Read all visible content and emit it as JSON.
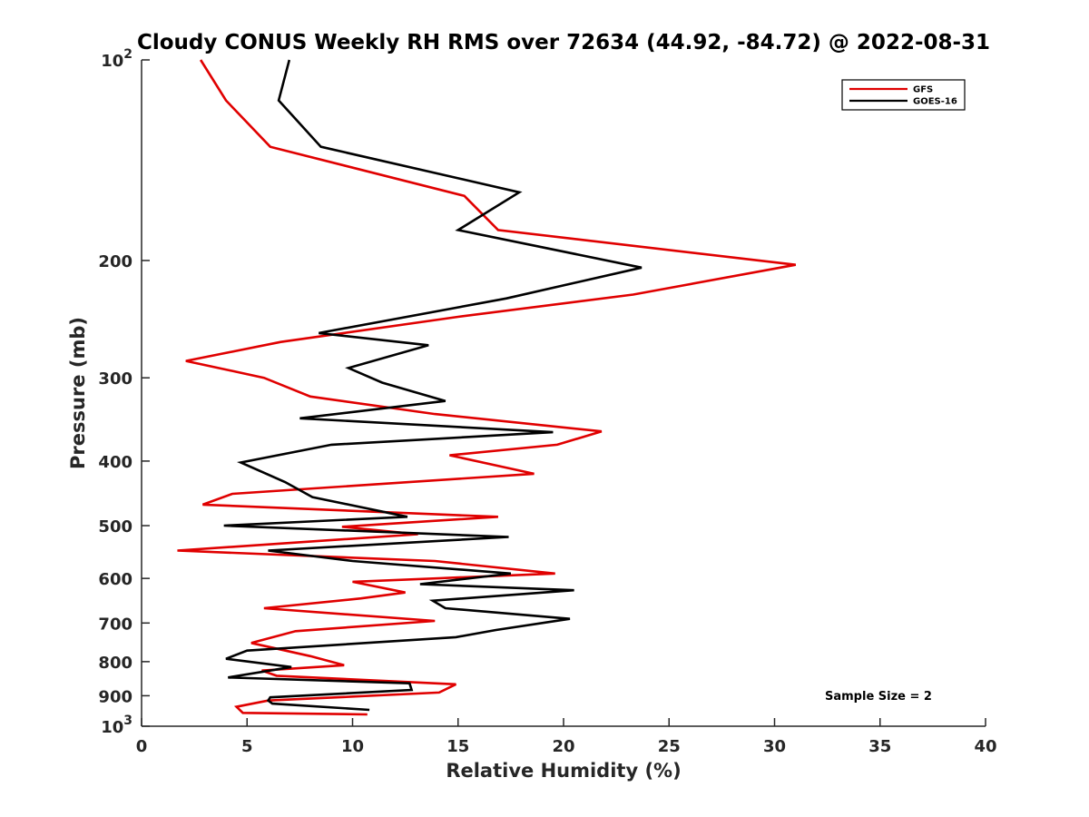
{
  "chart_data": {
    "type": "line",
    "title": "Cloudy CONUS Weekly RH RMS over 72634 (44.92, -84.72) @ 2022-08-31",
    "xlabel": "Relative Humidity (%)",
    "ylabel": "Pressure (mb)",
    "xlim": [
      0,
      40
    ],
    "ylim": [
      100,
      1000
    ],
    "yscale": "log",
    "y_reversed": true,
    "x_ticks": [
      "0",
      "5",
      "10",
      "15",
      "20",
      "25",
      "30",
      "35",
      "40"
    ],
    "y_ticks": [
      {
        "value": 100,
        "base": "10",
        "exp": "2"
      },
      {
        "value": 200,
        "label": "200"
      },
      {
        "value": 300,
        "label": "300"
      },
      {
        "value": 400,
        "label": "400"
      },
      {
        "value": 500,
        "label": "500"
      },
      {
        "value": 600,
        "label": "600"
      },
      {
        "value": 700,
        "label": "700"
      },
      {
        "value": 800,
        "label": "800"
      },
      {
        "value": 900,
        "label": "900"
      },
      {
        "value": 1000,
        "base": "10",
        "exp": "3"
      }
    ],
    "legend_position": "top-right",
    "grid": false,
    "annotation": "Sample Size = 2",
    "series": [
      {
        "name": "GFS",
        "color": "#e00000",
        "points": [
          [
            2.8,
            100
          ],
          [
            4.0,
            115
          ],
          [
            6.1,
            135
          ],
          [
            15.3,
            160
          ],
          [
            16.9,
            180
          ],
          [
            31.0,
            203
          ],
          [
            23.3,
            225
          ],
          [
            15.0,
            243
          ],
          [
            6.6,
            265
          ],
          [
            2.1,
            283
          ],
          [
            5.8,
            300
          ],
          [
            8.0,
            320
          ],
          [
            13.9,
            340
          ],
          [
            21.8,
            361
          ],
          [
            19.7,
            378
          ],
          [
            14.6,
            392
          ],
          [
            18.6,
            418
          ],
          [
            4.3,
            448
          ],
          [
            2.9,
            465
          ],
          [
            16.9,
            485
          ],
          [
            9.5,
            502
          ],
          [
            13.1,
            515
          ],
          [
            1.7,
            545
          ],
          [
            13.9,
            565
          ],
          [
            19.6,
            590
          ],
          [
            10.0,
            607
          ],
          [
            12.5,
            630
          ],
          [
            10.4,
            643
          ],
          [
            5.8,
            665
          ],
          [
            13.9,
            695
          ],
          [
            7.3,
            720
          ],
          [
            5.2,
            750
          ],
          [
            8.0,
            785
          ],
          [
            9.6,
            810
          ],
          [
            5.7,
            825
          ],
          [
            6.4,
            840
          ],
          [
            14.9,
            865
          ],
          [
            14.1,
            890
          ],
          [
            6.0,
            915
          ],
          [
            4.5,
            935
          ],
          [
            4.8,
            955
          ],
          [
            10.7,
            960
          ]
        ]
      },
      {
        "name": "GOES-16",
        "color": "#000000",
        "points": [
          [
            7.0,
            100
          ],
          [
            6.5,
            115
          ],
          [
            8.5,
            135
          ],
          [
            17.9,
            158
          ],
          [
            15.0,
            180
          ],
          [
            23.7,
            205
          ],
          [
            17.3,
            228
          ],
          [
            8.4,
            257
          ],
          [
            13.6,
            268
          ],
          [
            9.8,
            290
          ],
          [
            11.4,
            305
          ],
          [
            14.4,
            325
          ],
          [
            7.5,
            345
          ],
          [
            19.5,
            362
          ],
          [
            9.0,
            378
          ],
          [
            4.7,
            402
          ],
          [
            6.8,
            430
          ],
          [
            8.1,
            453
          ],
          [
            12.6,
            485
          ],
          [
            3.9,
            500
          ],
          [
            17.4,
            520
          ],
          [
            6.0,
            545
          ],
          [
            10.0,
            565
          ],
          [
            17.5,
            590
          ],
          [
            13.2,
            612
          ],
          [
            20.5,
            625
          ],
          [
            13.8,
            648
          ],
          [
            14.4,
            665
          ],
          [
            20.3,
            690
          ],
          [
            16.8,
            717
          ],
          [
            14.9,
            735
          ],
          [
            5.0,
            770
          ],
          [
            4.0,
            792
          ],
          [
            7.1,
            815
          ],
          [
            4.1,
            845
          ],
          [
            12.7,
            862
          ],
          [
            12.8,
            882
          ],
          [
            6.1,
            905
          ],
          [
            6.0,
            915
          ],
          [
            6.2,
            925
          ],
          [
            10.8,
            945
          ]
        ]
      }
    ]
  }
}
